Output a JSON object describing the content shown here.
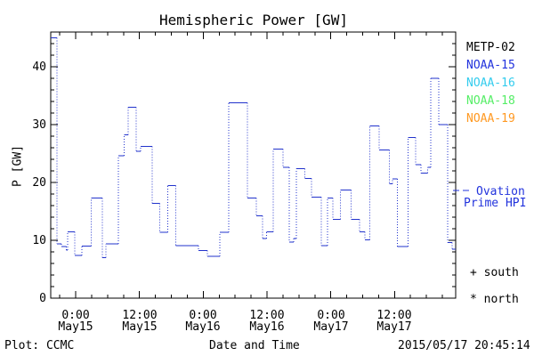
{
  "title": "Hemispheric Power [GW]",
  "y_axis_label": "P [GW]",
  "x_axis_label": "Date and Time",
  "footer": {
    "plot_source": "Plot: CCMC",
    "timestamp": "2015/05/17 20:45:14"
  },
  "colors": {
    "curve": "#2233cc",
    "axis": "#000000",
    "metp02": "#000000",
    "noaa15": "#2233dd",
    "noaa16": "#33ccee",
    "noaa18": "#55ee66",
    "noaa19": "#ff9922"
  },
  "legend": {
    "position": "right",
    "satellites": [
      {
        "label": "METP-02",
        "color": "#000000"
      },
      {
        "label": "NOAA-15",
        "color": "#2233dd"
      },
      {
        "label": "NOAA-16",
        "color": "#33ccee"
      },
      {
        "label": "NOAA-18",
        "color": "#55ee66"
      },
      {
        "label": "NOAA-19",
        "color": "#ff9922"
      }
    ]
  },
  "ovation": {
    "line1": "Ovation",
    "line2": "Prime HPI",
    "color": "#2233dd"
  },
  "hemisphere_markers": {
    "south": "+ south",
    "north": "* north"
  },
  "chart_data": {
    "type": "line",
    "subtype": "step",
    "title": "Hemispheric Power [GW]",
    "xlabel": "Date and Time",
    "ylabel": "P [GW]",
    "x_unit": "hours since 2015-05-15 00:00",
    "xlim": [
      -4.7,
      71.5
    ],
    "ylim": [
      0,
      46
    ],
    "grid": false,
    "legend_position": "right",
    "y_major_ticks": [
      0,
      10,
      20,
      30,
      40
    ],
    "y_minor_step": 2,
    "x_minor_step_hours": 3,
    "x_major_ticks": [
      {
        "t": 0,
        "time": "0:00",
        "date": "May15"
      },
      {
        "t": 12,
        "time": "12:00",
        "date": "May15"
      },
      {
        "t": 24,
        "time": "0:00",
        "date": "May16"
      },
      {
        "t": 36,
        "time": "12:00",
        "date": "May16"
      },
      {
        "t": 48,
        "time": "0:00",
        "date": "May17"
      },
      {
        "t": 60,
        "time": "12:00",
        "date": "May17"
      }
    ],
    "steps": [
      [
        -4.7,
        45.0
      ],
      [
        -3.5,
        9.4
      ],
      [
        -2.7,
        8.9
      ],
      [
        -1.8,
        8.3
      ],
      [
        -1.5,
        11.5
      ],
      [
        -0.2,
        7.4
      ],
      [
        1.2,
        9.0
      ],
      [
        2.9,
        17.3
      ],
      [
        5.0,
        7.0
      ],
      [
        5.7,
        9.4
      ],
      [
        8.0,
        24.6
      ],
      [
        9.1,
        28.2
      ],
      [
        9.9,
        33.0
      ],
      [
        11.4,
        25.4
      ],
      [
        12.2,
        26.2
      ],
      [
        14.4,
        16.4
      ],
      [
        15.8,
        11.4
      ],
      [
        17.3,
        19.5
      ],
      [
        18.8,
        9.1
      ],
      [
        23.1,
        8.2
      ],
      [
        24.8,
        7.2
      ],
      [
        27.1,
        11.4
      ],
      [
        28.8,
        33.8
      ],
      [
        32.3,
        17.3
      ],
      [
        34.0,
        14.2
      ],
      [
        35.2,
        10.3
      ],
      [
        35.9,
        11.5
      ],
      [
        37.2,
        25.8
      ],
      [
        39.0,
        22.6
      ],
      [
        40.2,
        9.7
      ],
      [
        41.0,
        10.3
      ],
      [
        41.5,
        22.4
      ],
      [
        43.1,
        20.7
      ],
      [
        44.4,
        17.5
      ],
      [
        46.2,
        9.1
      ],
      [
        47.4,
        17.3
      ],
      [
        48.4,
        13.6
      ],
      [
        49.8,
        18.7
      ],
      [
        51.8,
        13.6
      ],
      [
        53.4,
        11.5
      ],
      [
        54.4,
        10.1
      ],
      [
        55.3,
        29.8
      ],
      [
        57.1,
        25.6
      ],
      [
        59.0,
        19.8
      ],
      [
        59.6,
        20.6
      ],
      [
        60.5,
        8.9
      ],
      [
        62.5,
        27.8
      ],
      [
        64.0,
        23.1
      ],
      [
        65.0,
        21.6
      ],
      [
        66.2,
        22.6
      ],
      [
        66.8,
        38.0
      ],
      [
        68.3,
        30.0
      ],
      [
        70.0,
        9.6
      ],
      [
        70.8,
        8.5
      ]
    ]
  }
}
